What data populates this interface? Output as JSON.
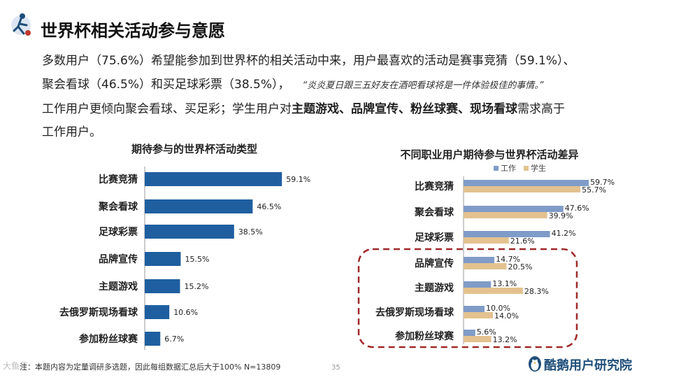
{
  "page": {
    "title": "世界杯相关活动参与意愿",
    "line1": "多数用户（75.6%）希望能参加到世界杯的相关活动中来，用户最喜欢的活动是赛事竞猜（59.1%）、",
    "line2": "聚会看球（46.5%）和买足球彩票（38.5%），",
    "quote": "“炎炎夏日跟三五好友在酒吧看球将是一件体验极佳的事情。”",
    "line3_start": "工作用户更倾向聚会看球、买足彩；学生用户对",
    "line3_bold": "主题游戏、品牌宣传、粉丝球赛、现场看球",
    "line3_end": "需求高于",
    "line4": "工作用户。",
    "footnote": "注：本题内容为定量调研多选题，因此每组数据汇总后大于100%    N=13809",
    "page_number": "35",
    "brand": "酷鹅用户研究院",
    "watermark": "大鱼号"
  },
  "colors": {
    "left_bar": "#1f5fa0",
    "work": "#7f9cc8",
    "student": "#e3c28f",
    "highlight": "#a02828"
  },
  "chart_data": [
    {
      "type": "bar",
      "orientation": "horizontal",
      "title": "期待参与的世界杯活动类型",
      "categories": [
        "比赛竞猜",
        "聚会看球",
        "足球彩票",
        "品牌宣传",
        "主题游戏",
        "去俄罗斯现场看球",
        "参加粉丝球赛"
      ],
      "values": [
        59.1,
        46.5,
        38.5,
        15.5,
        15.2,
        10.6,
        6.7
      ],
      "labels": [
        "59.1%",
        "46.5%",
        "38.5%",
        "15.5%",
        "15.2%",
        "10.6%",
        "6.7%"
      ],
      "unit": "%",
      "xlim": [
        0,
        100
      ]
    },
    {
      "type": "bar",
      "orientation": "horizontal",
      "title": "不同职业用户期待参与世界杯活动差异",
      "categories": [
        "比赛竞猜",
        "聚会看球",
        "足球彩票",
        "品牌宣传",
        "主题游戏",
        "去俄罗斯现场看球",
        "参加粉丝球赛"
      ],
      "series": [
        {
          "name": "工作",
          "values": [
            59.7,
            47.6,
            41.2,
            14.7,
            13.1,
            10.0,
            5.6
          ],
          "labels": [
            "59.7%",
            "47.6%",
            "41.2%",
            "14.7%",
            "13.1%",
            "10.0%",
            "5.6%"
          ]
        },
        {
          "name": "学生",
          "values": [
            55.7,
            39.9,
            21.6,
            20.5,
            28.3,
            14.0,
            13.2
          ],
          "labels": [
            "55.7%",
            "39.9%",
            "21.6%",
            "20.5%",
            "28.3%",
            "14.0%",
            "13.2%"
          ]
        }
      ],
      "legend": "top-center",
      "highlighted_categories": [
        "品牌宣传",
        "主题游戏",
        "去俄罗斯现场看球",
        "参加粉丝球赛"
      ],
      "unit": "%",
      "xlim": [
        0,
        100
      ]
    }
  ]
}
